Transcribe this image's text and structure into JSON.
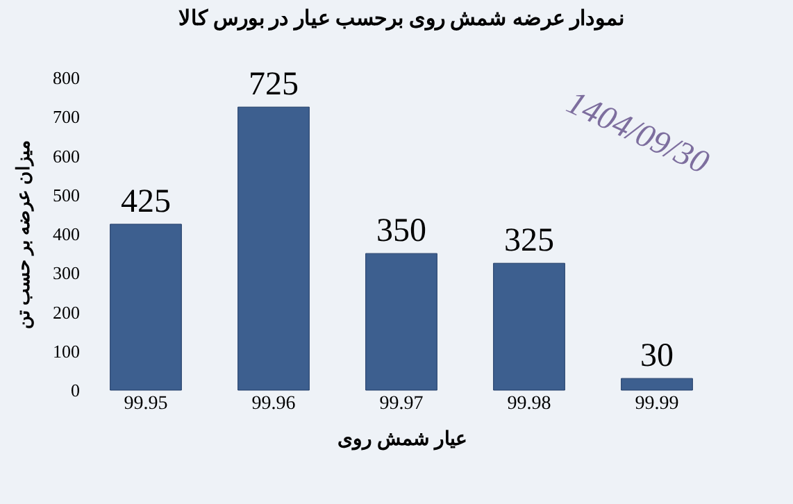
{
  "chart_data": {
    "type": "bar",
    "title": "نمودار عرضه شمش روی برحسب عیار در بورس کالا",
    "xlabel": "عیار شمش روی",
    "ylabel": "میزان عرضه بر حسب تن",
    "categories": [
      "99.95",
      "99.96",
      "99.97",
      "99.98",
      "99.99"
    ],
    "values": [
      425,
      725,
      350,
      325,
      30
    ],
    "color": "#3d5f8f",
    "ylim": [
      0,
      800
    ],
    "yticks": [
      0,
      100,
      200,
      300,
      400,
      500,
      600,
      700,
      800
    ],
    "grid": false,
    "data_labels": true,
    "annotations": [
      "1404/09/30"
    ]
  }
}
